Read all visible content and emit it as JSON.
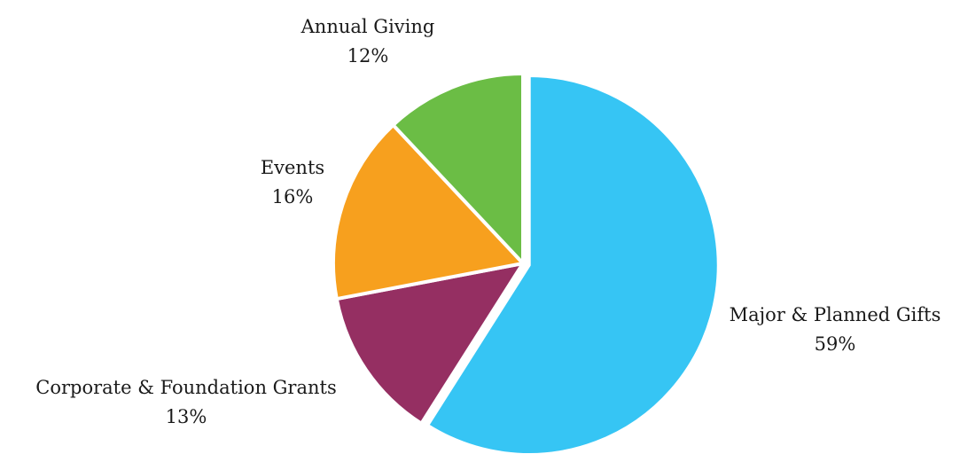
{
  "chart_data": {
    "type": "pie",
    "slices": [
      {
        "label": "Major & Planned Gifts",
        "value": 59,
        "value_label": "59%",
        "color": "#36C5F4"
      },
      {
        "label": "Corporate & Foundation Grants",
        "value": 13,
        "value_label": "13%",
        "color": "#952F62"
      },
      {
        "label": "Events",
        "value": 16,
        "value_label": "16%",
        "color": "#F7A01E"
      },
      {
        "label": "Annual Giving",
        "value": 12,
        "value_label": "12%",
        "color": "#6BBD45"
      }
    ],
    "start_angle": "12 o'clock",
    "direction": "clockwise",
    "labels": "outside",
    "legend": "none"
  }
}
